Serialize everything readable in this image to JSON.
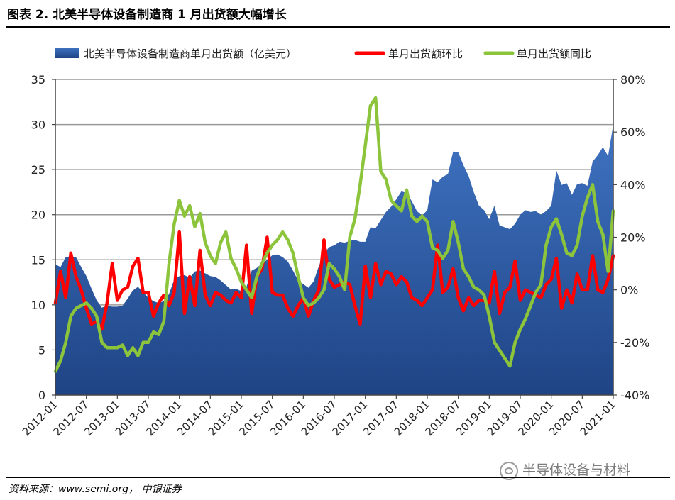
{
  "figure_title": "图表 2. 北美半导体设备制造商 1 月出货额大幅增长",
  "source_text": "资料来源：www.semi.org， 中银证券",
  "watermark_text": "半导体设备与材料",
  "chart_data": {
    "type": "area",
    "x": [
      "2012-01",
      "2012-02",
      "2012-03",
      "2012-04",
      "2012-05",
      "2012-06",
      "2012-07",
      "2012-08",
      "2012-09",
      "2012-10",
      "2012-11",
      "2012-12",
      "2013-01",
      "2013-02",
      "2013-03",
      "2013-04",
      "2013-05",
      "2013-06",
      "2013-07",
      "2013-08",
      "2013-09",
      "2013-10",
      "2013-11",
      "2013-12",
      "2014-01",
      "2014-02",
      "2014-03",
      "2014-04",
      "2014-05",
      "2014-06",
      "2014-07",
      "2014-08",
      "2014-09",
      "2014-10",
      "2014-11",
      "2014-12",
      "2015-01",
      "2015-02",
      "2015-03",
      "2015-04",
      "2015-05",
      "2015-06",
      "2015-07",
      "2015-08",
      "2015-09",
      "2015-10",
      "2015-11",
      "2015-12",
      "2016-01",
      "2016-02",
      "2016-03",
      "2016-04",
      "2016-05",
      "2016-06",
      "2016-07",
      "2016-08",
      "2016-09",
      "2016-10",
      "2016-11",
      "2016-12",
      "2017-01",
      "2017-02",
      "2017-03",
      "2017-04",
      "2017-05",
      "2017-06",
      "2017-07",
      "2017-08",
      "2017-09",
      "2017-10",
      "2017-11",
      "2017-12",
      "2018-01",
      "2018-02",
      "2018-03",
      "2018-04",
      "2018-05",
      "2018-06",
      "2018-07",
      "2018-08",
      "2018-09",
      "2018-10",
      "2018-11",
      "2018-12",
      "2019-01",
      "2019-02",
      "2019-03",
      "2019-04",
      "2019-05",
      "2019-06",
      "2019-07",
      "2019-08",
      "2019-09",
      "2019-10",
      "2019-11",
      "2019-12",
      "2020-01",
      "2020-02",
      "2020-03",
      "2020-04",
      "2020-05",
      "2020-06",
      "2020-07",
      "2020-08",
      "2020-09",
      "2020-10",
      "2020-11",
      "2020-12",
      "2021-01"
    ],
    "x_tick_labels": [
      "2012-01",
      "2012-07",
      "2013-01",
      "2013-07",
      "2014-01",
      "2014-07",
      "2015-01",
      "2015-07",
      "2016-01",
      "2016-07",
      "2017-01",
      "2017-07",
      "2018-01",
      "2018-07",
      "2019-01",
      "2019-07",
      "2020-01",
      "2020-07",
      "2021-01"
    ],
    "series": [
      {
        "name": "北美半导体设备制造商单月出货额（亿美元）",
        "chart_type": "area",
        "axis": "left",
        "color": "#2f5da6",
        "values": [
          14.5,
          14.2,
          15.3,
          15.4,
          15.3,
          14.2,
          13.2,
          11.8,
          10.5,
          9.7,
          9.9,
          9.8,
          9.8,
          9.9,
          10.7,
          11.6,
          12.0,
          11.4,
          10.8,
          10.4,
          10.2,
          10.4,
          11.2,
          12.8,
          13.2,
          13.3,
          13.0,
          13.7,
          13.8,
          13.5,
          13.2,
          13.1,
          12.7,
          12.2,
          11.7,
          11.8,
          11.5,
          12.0,
          13.8,
          14.1,
          14.6,
          15.0,
          15.5,
          15.6,
          15.3,
          14.8,
          13.8,
          12.7,
          12.3,
          11.9,
          12.6,
          14.3,
          15.7,
          16.4,
          16.6,
          17.0,
          16.9,
          17.1,
          17.2,
          17.0,
          17.0,
          18.6,
          18.5,
          19.4,
          20.3,
          20.9,
          21.7,
          22.6,
          22.4,
          21.5,
          20.4,
          19.9,
          20.5,
          23.9,
          23.6,
          24.2,
          24.5,
          27.0,
          26.9,
          25.5,
          24.3,
          22.5,
          21.0,
          20.5,
          19.5,
          21.0,
          18.8,
          18.6,
          18.4,
          19.0,
          20.0,
          20.5,
          20.3,
          20.4,
          20.0,
          20.4,
          21.0,
          24.9,
          23.3,
          23.5,
          22.2,
          23.4,
          23.5,
          23.2,
          25.9,
          26.6,
          27.5,
          26.5,
          30.0
        ],
        "ylim": [
          0,
          35
        ]
      },
      {
        "name": "单月出货额环比",
        "chart_type": "line",
        "axis": "right",
        "color": "#ff0000",
        "unit": "%",
        "values": [
          -5,
          7,
          -3,
          14,
          5,
          0,
          -7,
          -13,
          -12,
          -15,
          -5,
          10,
          -4,
          0,
          1,
          9,
          12,
          -1,
          -1,
          -10,
          -5,
          -2,
          -6,
          -1,
          22,
          -9,
          5,
          -6,
          15,
          -2,
          -6,
          -1,
          -2,
          -4,
          -5,
          -1,
          -3,
          17,
          -9,
          5,
          8,
          20,
          -1,
          -2,
          -2,
          -7,
          -10,
          -6,
          -3,
          -10,
          -4,
          0,
          19,
          4,
          1,
          2,
          3,
          2,
          -6,
          -13,
          9,
          -3,
          10,
          2,
          7,
          6,
          2,
          5,
          3,
          -3,
          -4,
          -6,
          -3,
          0,
          17,
          -1,
          1,
          8,
          -3,
          -8,
          -3,
          -6,
          -4,
          -4,
          -5,
          7,
          -9,
          -1,
          1,
          11,
          -4,
          0,
          -1,
          -2,
          -3,
          2,
          4,
          12,
          -7,
          0,
          -5,
          6,
          0,
          0,
          13,
          0,
          -1,
          4,
          13
        ],
        "ylim": [
          -40,
          80
        ]
      },
      {
        "name": "单月出货额同比",
        "chart_type": "line",
        "axis": "right",
        "color": "#8cc43c",
        "unit": "%",
        "values": [
          -31,
          -27,
          -20,
          -10,
          -7,
          -6,
          -5,
          -7,
          -10,
          -20,
          -22,
          -22,
          -22,
          -21,
          -25,
          -22,
          -25,
          -20,
          -20,
          -16,
          -17,
          -12,
          10,
          25,
          34,
          28,
          32,
          24,
          29,
          18,
          13,
          10,
          18,
          22,
          12,
          8,
          3,
          0,
          -3,
          5,
          10,
          14,
          17,
          19,
          22,
          19,
          14,
          5,
          -3,
          -6,
          -5,
          -3,
          0,
          10,
          8,
          5,
          0,
          20,
          27,
          40,
          55,
          70,
          73,
          45,
          42,
          34,
          32,
          30,
          38,
          28,
          26,
          28,
          26,
          16,
          15,
          12,
          15,
          26,
          18,
          8,
          5,
          1,
          0,
          -2,
          -10,
          -20,
          -23,
          -26,
          -29,
          -20,
          -15,
          -11,
          -6,
          -1,
          2,
          17,
          24,
          27,
          21,
          14,
          13,
          17,
          28,
          35,
          40,
          26,
          21,
          7,
          30
        ],
        "ylim": [
          -40,
          80
        ]
      }
    ],
    "left_axis": {
      "ylim": [
        0,
        35
      ],
      "ticks": [
        0,
        5,
        10,
        15,
        20,
        25,
        30,
        35
      ],
      "tick_labels": [
        "0",
        "5",
        "10",
        "15",
        "20",
        "25",
        "30",
        "35"
      ]
    },
    "right_axis": {
      "ylim": [
        -40,
        80
      ],
      "ticks": [
        -40,
        -20,
        0,
        20,
        40,
        60,
        80
      ],
      "tick_labels": [
        "-40%",
        "-20%",
        "0%",
        "20%",
        "40%",
        "60%",
        "80%"
      ]
    },
    "grid": true,
    "legend_placement": "top"
  }
}
